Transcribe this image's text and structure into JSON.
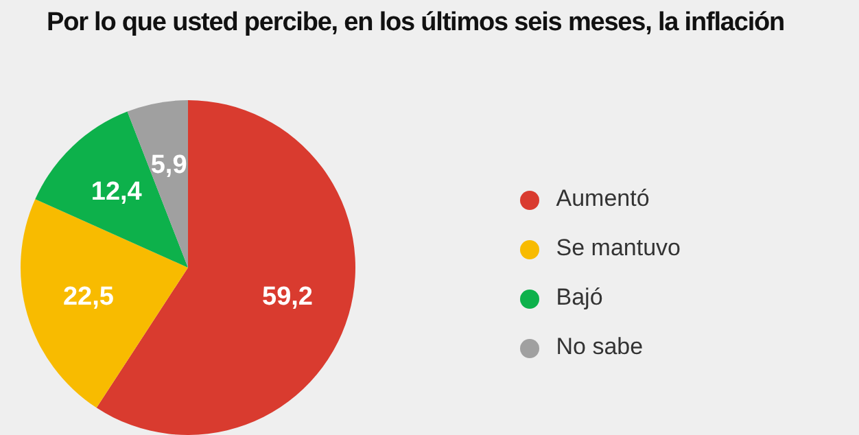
{
  "chart_data": {
    "type": "pie",
    "title": "Por lo que usted percibe, en los últimos seis meses, la inflación",
    "categories": [
      "Aumentó",
      "Se mantuvo",
      "Bajó",
      "No sabe"
    ],
    "values": [
      59.2,
      22.5,
      12.4,
      5.9
    ],
    "value_labels": [
      "59,2",
      "22,5",
      "12,4",
      "5,9"
    ],
    "colors": [
      "#d93b2f",
      "#f8bb00",
      "#0db14b",
      "#a0a0a0"
    ],
    "legend": "right"
  }
}
